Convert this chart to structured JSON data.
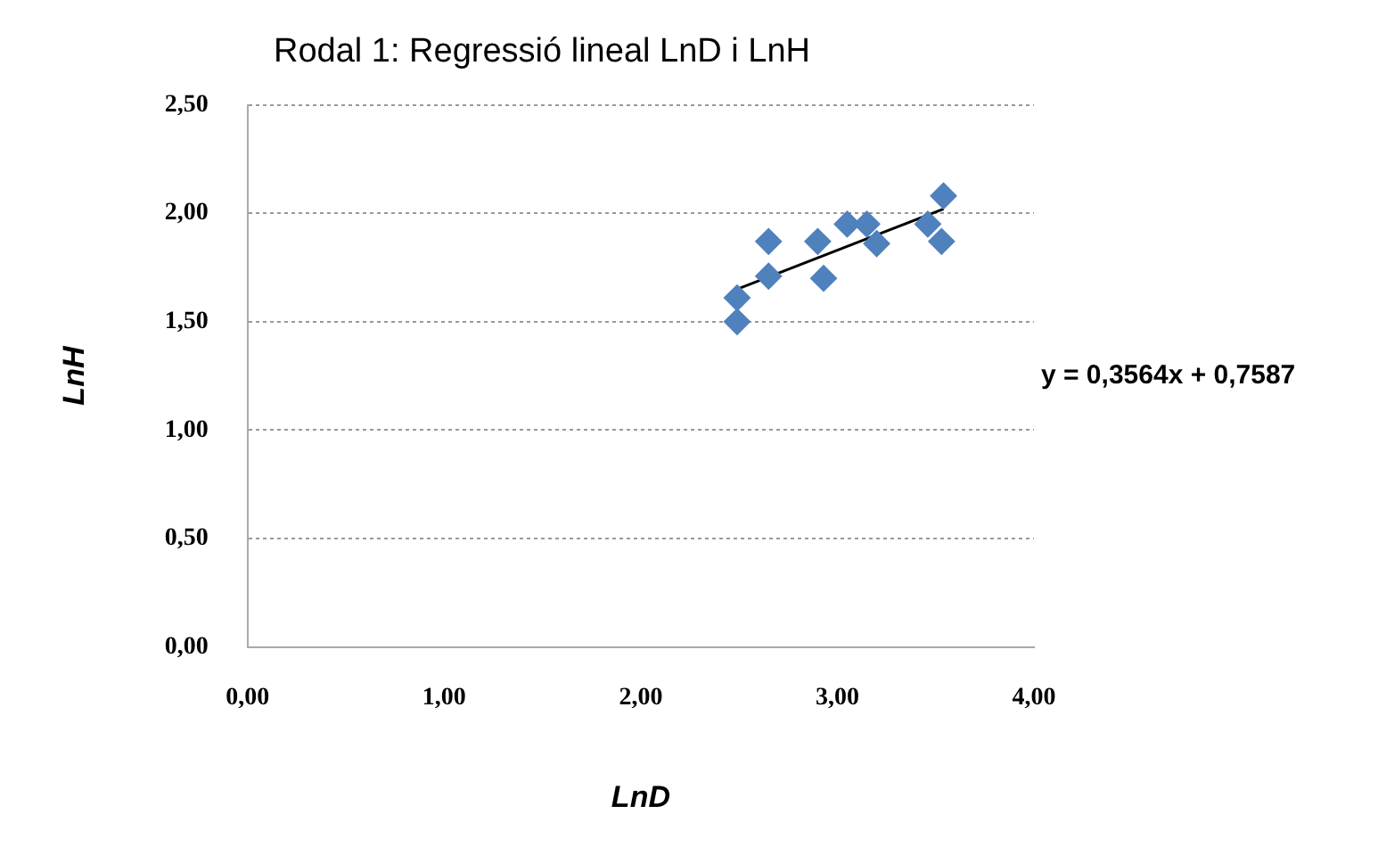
{
  "chart_data": {
    "type": "scatter",
    "title": "Rodal 1: Regressió lineal LnD i LnH",
    "xlabel": "LnD",
    "ylabel": "LnH",
    "x": [
      2.49,
      2.49,
      2.65,
      2.65,
      2.9,
      2.93,
      3.05,
      3.15,
      3.2,
      3.46,
      3.49,
      3.53,
      3.54
    ],
    "series": [
      {
        "color": "#4f81bd",
        "marker": "diamond",
        "values": [
          1.61,
          1.5,
          1.87,
          1.71,
          1.87,
          1.7,
          1.95,
          1.95,
          1.86,
          1.95,
          null,
          1.87,
          2.08
        ]
      },
      {
        "type": "line",
        "color": "#000000",
        "x": [
          2.49,
          3.54
        ],
        "values": [
          1.65,
          2.02
        ]
      }
    ],
    "xlim": [
      0,
      4
    ],
    "ylim": [
      0,
      2.5
    ],
    "xticks": [
      {
        "value": 0,
        "label": "0,00"
      },
      {
        "value": 1,
        "label": "1,00"
      },
      {
        "value": 2,
        "label": "2,00"
      },
      {
        "value": 3,
        "label": "3,00"
      },
      {
        "value": 4,
        "label": "4,00"
      }
    ],
    "yticks": [
      {
        "value": 0,
        "label": "0,00"
      },
      {
        "value": 0.5,
        "label": "0,50"
      },
      {
        "value": 1,
        "label": "1,00"
      },
      {
        "value": 1.5,
        "label": "1,50"
      },
      {
        "value": 2,
        "label": "2,00"
      },
      {
        "value": 2.5,
        "label": "2,50"
      }
    ],
    "grid": "y",
    "legend": false,
    "annotations": [
      "y = 0,3564x + 0,7587"
    ]
  }
}
